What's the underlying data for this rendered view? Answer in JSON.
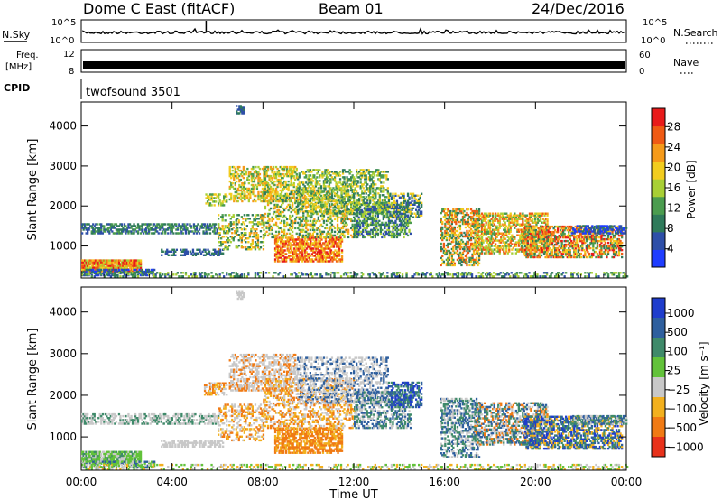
{
  "header": {
    "station": "Dome C East (fitACF)",
    "beam": "Beam 01",
    "date": "24/Dec/2016"
  },
  "noise_panel": {
    "left_label": "N.Sky",
    "right_label": "N.Search",
    "ticks": [
      "10^5",
      "10^0"
    ]
  },
  "freq_panel": {
    "left_label_line1": "Freq.",
    "left_label_line2": "[MHz]",
    "left_ticks": [
      "12",
      "8"
    ],
    "right_label": "Nave",
    "right_ticks": [
      "60",
      "0"
    ]
  },
  "cpid_panel": {
    "left_label": "CPID",
    "program": "twofsound 3501"
  },
  "chart_data": [
    {
      "type": "heatmap",
      "name": "power",
      "ylabel": "Slant Range [km]",
      "yticks": [
        "4000",
        "3000",
        "2000",
        "1000"
      ],
      "ylim": [
        200,
        4600
      ],
      "xlim": [
        0,
        24
      ],
      "colorbar_label": "Power [dB]",
      "colorbar_ticks": [
        "28",
        "24",
        "20",
        "16",
        "12",
        "8",
        "4"
      ],
      "colors": [
        "#1f3dff",
        "#2e4fa8",
        "#2f7a5a",
        "#4b9c4f",
        "#a8cf35",
        "#f2cc1e",
        "#f59a1a",
        "#ef5a14",
        "#e81b1b"
      ]
    },
    {
      "type": "heatmap",
      "name": "velocity",
      "ylabel": "Slant Range [km]",
      "yticks": [
        "4000",
        "3000",
        "2000",
        "1000"
      ],
      "ylim": [
        200,
        4600
      ],
      "xlim": [
        0,
        24
      ],
      "colorbar_label": "Velocity [m s⁻¹]",
      "colorbar_ticks": [
        "1000",
        "500",
        "100",
        "25",
        "−25",
        "−100",
        "−500",
        "−1000"
      ],
      "colors": [
        "#1f3dcc",
        "#2e5f9e",
        "#3f8a6a",
        "#62c23a",
        "#c8c8c8",
        "#f2b01e",
        "#f07a14",
        "#e8321b"
      ]
    }
  ],
  "xaxis": {
    "ticks": [
      "00:00",
      "04:00",
      "08:00",
      "12:00",
      "16:00",
      "20:00",
      "00:00"
    ],
    "label": "Time UT"
  }
}
